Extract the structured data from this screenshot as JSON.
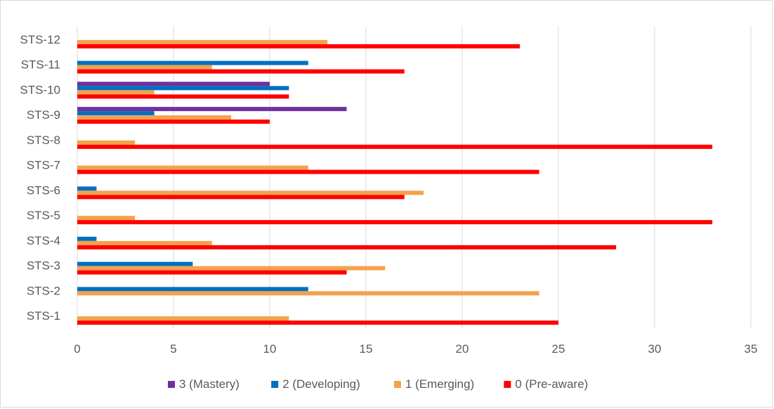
{
  "chart_data": {
    "type": "bar",
    "orientation": "horizontal",
    "title": "",
    "xlabel": "",
    "ylabel": "",
    "xlim": [
      0,
      35
    ],
    "x_ticks": [
      0,
      5,
      10,
      15,
      20,
      25,
      30,
      35
    ],
    "grid": "vertical",
    "legend_position": "bottom",
    "categories": [
      "STS-1",
      "STS-2",
      "STS-3",
      "STS-4",
      "STS-5",
      "STS-6",
      "STS-7",
      "STS-8",
      "STS-9",
      "STS-10",
      "STS-11",
      "STS-12"
    ],
    "series": [
      {
        "name": "3 (Mastery)",
        "color": "#7030a0",
        "values": [
          0,
          0,
          0,
          0,
          0,
          0,
          0,
          0,
          14,
          10,
          0,
          0
        ]
      },
      {
        "name": "2 (Developing)",
        "color": "#0070c0",
        "values": [
          0,
          12,
          6,
          1,
          0,
          1,
          0,
          0,
          4,
          11,
          12,
          0
        ]
      },
      {
        "name": "1 (Emerging)",
        "color": "#f4a24d",
        "values": [
          11,
          24,
          16,
          7,
          3,
          18,
          12,
          3,
          8,
          4,
          7,
          13
        ]
      },
      {
        "name": "0 (Pre-aware)",
        "color": "#ff0000",
        "values": [
          25,
          0,
          14,
          28,
          33,
          17,
          24,
          33,
          10,
          11,
          17,
          23
        ]
      }
    ]
  }
}
